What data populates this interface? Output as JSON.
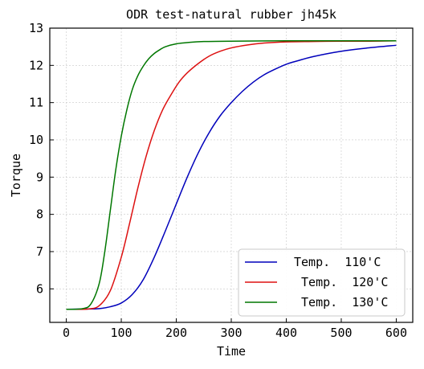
{
  "chart_data": {
    "type": "line",
    "title": "ODR test-natural rubber jh45k",
    "xlabel": "Time",
    "ylabel": "Torque",
    "xlim": [
      -30,
      630
    ],
    "ylim": [
      5.1,
      13.0
    ],
    "xticks": [
      0,
      100,
      200,
      300,
      400,
      500,
      600
    ],
    "yticks": [
      6,
      7,
      8,
      9,
      10,
      11,
      12,
      13
    ],
    "grid": true,
    "legend_position": "lower-right",
    "series": [
      {
        "name": "Temp.  110'C",
        "color": "#0000bb",
        "x": [
          0,
          40,
          60,
          80,
          100,
          120,
          140,
          160,
          180,
          200,
          220,
          240,
          260,
          280,
          300,
          320,
          340,
          360,
          380,
          400,
          420,
          450,
          500,
          550,
          600
        ],
        "y": [
          5.45,
          5.46,
          5.47,
          5.52,
          5.62,
          5.85,
          6.25,
          6.85,
          7.55,
          8.28,
          9.0,
          9.65,
          10.2,
          10.65,
          11.0,
          11.3,
          11.55,
          11.75,
          11.9,
          12.03,
          12.12,
          12.24,
          12.38,
          12.47,
          12.54
        ]
      },
      {
        "name": " Temp.  120'C",
        "color": "#dd1111",
        "x": [
          0,
          40,
          60,
          80,
          100,
          115,
          130,
          145,
          160,
          175,
          190,
          205,
          220,
          240,
          260,
          280,
          300,
          330,
          360,
          400,
          450,
          500,
          550,
          600
        ],
        "y": [
          5.45,
          5.46,
          5.55,
          5.95,
          6.85,
          7.75,
          8.7,
          9.55,
          10.25,
          10.8,
          11.2,
          11.55,
          11.8,
          12.05,
          12.25,
          12.38,
          12.47,
          12.55,
          12.6,
          12.63,
          12.64,
          12.65,
          12.65,
          12.66
        ]
      },
      {
        "name": " Temp.  130'C",
        "color": "#007700",
        "x": [
          0,
          30,
          45,
          60,
          70,
          80,
          90,
          100,
          110,
          120,
          130,
          140,
          150,
          160,
          170,
          180,
          200,
          225,
          250,
          300,
          400,
          500,
          600
        ],
        "y": [
          5.45,
          5.47,
          5.6,
          6.15,
          7.0,
          8.1,
          9.2,
          10.1,
          10.8,
          11.35,
          11.72,
          11.98,
          12.18,
          12.32,
          12.42,
          12.5,
          12.58,
          12.62,
          12.64,
          12.65,
          12.66,
          12.66,
          12.66
        ]
      }
    ]
  }
}
